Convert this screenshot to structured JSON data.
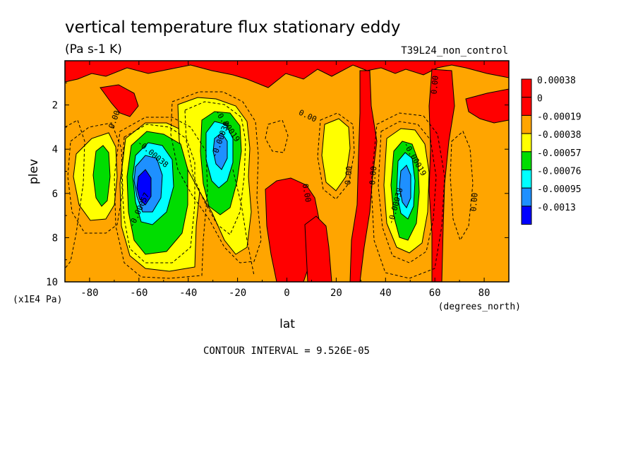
{
  "chart_data": {
    "type": "contour",
    "title": "vertical temperature flux stationary eddy",
    "units": "(Pa s-1 K)",
    "run_label": "T39L24_non_control",
    "xlabel": "lat",
    "ylabel": "plev",
    "x_units": "(degrees_north)",
    "y_units": "(x1E4 Pa)",
    "xlim": [
      -90,
      90
    ],
    "ylim": [
      10,
      0
    ],
    "x_ticks": [
      "-80",
      "-60",
      "-40",
      "-20",
      "0",
      "20",
      "40",
      "60",
      "80"
    ],
    "x_tick_values": [
      -80,
      -60,
      -40,
      -20,
      0,
      20,
      40,
      60,
      80
    ],
    "y_ticks": [
      "2",
      "4",
      "6",
      "8",
      "10"
    ],
    "y_tick_values": [
      2,
      4,
      6,
      8,
      10
    ],
    "contour_interval_text": "CONTOUR INTERVAL = 9.526E-05",
    "colorbar": {
      "labels": [
        "0.00038",
        "0",
        "-0.00019",
        "-0.00038",
        "-0.00057",
        "-0.00076",
        "-0.00095",
        "-0.0013"
      ],
      "colors": [
        "#ff0000",
        "#ff0000",
        "#ffa500",
        "#ffff00",
        "#00dd00",
        "#00ffff",
        "#1e90ff",
        "#0000ff"
      ]
    },
    "contour_labels": [
      {
        "text": "0.00",
        "lat": -69,
        "plev": 2.7,
        "angle": -70
      },
      {
        "text": "-0.00038",
        "lat": -55,
        "plev": 4.3,
        "angle": 40
      },
      {
        "text": "-0.00057",
        "lat": -59,
        "plev": 6.8,
        "angle": -65
      },
      {
        "text": "-0.00019",
        "lat": -25,
        "plev": 3.0,
        "angle": 55
      },
      {
        "text": "-0.00038",
        "lat": -26,
        "plev": 3.6,
        "angle": -70
      },
      {
        "text": "0.00",
        "lat": 8,
        "plev": 2.6,
        "angle": 25
      },
      {
        "text": "0.00",
        "lat": 7,
        "plev": 6.0,
        "angle": 80
      },
      {
        "text": "0.00",
        "lat": 26,
        "plev": 5.2,
        "angle": -85
      },
      {
        "text": "0.00",
        "lat": 36,
        "plev": 5.2,
        "angle": -85
      },
      {
        "text": "-0.00019",
        "lat": 51,
        "plev": 4.5,
        "angle": 60
      },
      {
        "text": "-0.00038",
        "lat": 45,
        "plev": 6.6,
        "angle": -75
      },
      {
        "text": "0.00",
        "lat": 61,
        "plev": 1.1,
        "angle": -85
      },
      {
        "text": "0.00",
        "lat": 77,
        "plev": 6.4,
        "angle": -85
      }
    ]
  }
}
